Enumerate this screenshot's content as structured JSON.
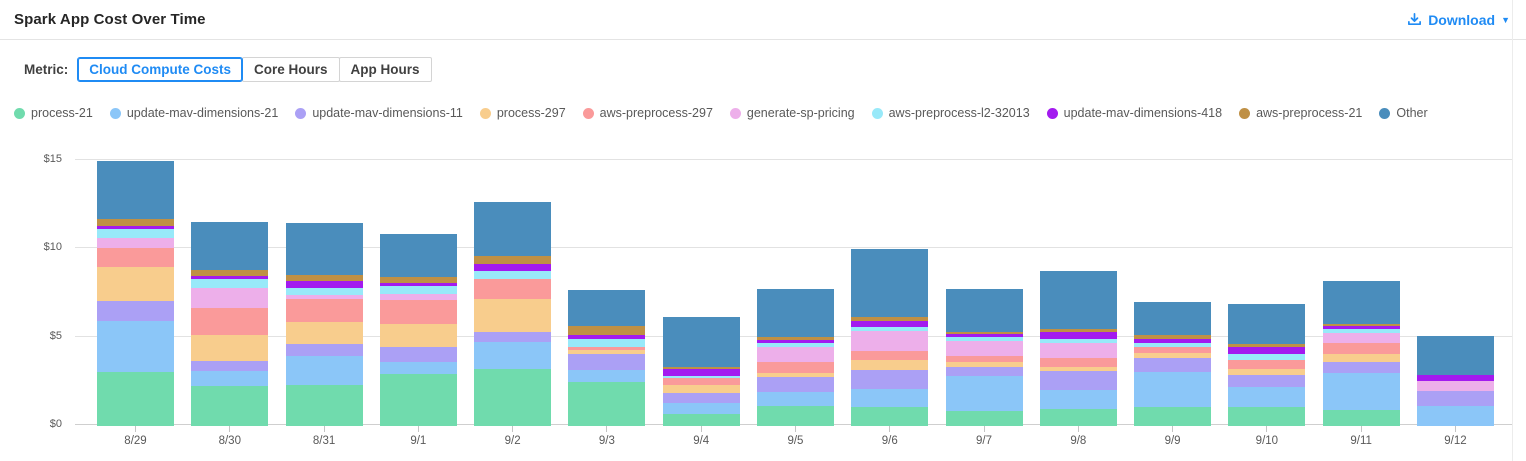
{
  "header": {
    "title": "Spark App Cost Over Time",
    "download_label": "Download"
  },
  "controls": {
    "metric_label": "Metric:",
    "tabs": [
      {
        "label": "Cloud Compute Costs",
        "selected": true
      },
      {
        "label": "Core Hours",
        "selected": false
      },
      {
        "label": "App Hours",
        "selected": false
      }
    ]
  },
  "colors": {
    "accent": "#1f8bf4",
    "gridline": "#e2e2e2",
    "axis_text": "#595959"
  },
  "chart_data": {
    "type": "bar",
    "stacked": true,
    "title": "Spark App Cost Over Time",
    "xlabel": "",
    "ylabel": "",
    "ylim": [
      0,
      15
    ],
    "yticks": [
      0,
      5,
      10,
      15
    ],
    "ytick_labels": [
      "$0",
      "$5",
      "$10",
      "$15"
    ],
    "grid": true,
    "legend_position": "top",
    "categories": [
      "8/29",
      "8/30",
      "8/31",
      "9/1",
      "9/2",
      "9/3",
      "9/4",
      "9/5",
      "9/6",
      "9/7",
      "9/8",
      "9/9",
      "9/10",
      "9/11",
      "9/12"
    ],
    "series": [
      {
        "name": "process-21",
        "color": "#70dbad",
        "values": [
          3.05,
          2.25,
          2.3,
          2.95,
          3.2,
          2.5,
          0.7,
          1.15,
          1.1,
          0.85,
          0.95,
          1.05,
          1.05,
          0.9,
          0
        ]
      },
      {
        "name": "update-mav-dimensions-21",
        "color": "#8bc6f8",
        "values": [
          2.9,
          0.85,
          1.65,
          0.7,
          1.55,
          0.65,
          0.6,
          0.8,
          1.0,
          2.0,
          1.1,
          2.0,
          1.15,
          2.1,
          1.15
        ]
      },
      {
        "name": "update-mav-dimensions-11",
        "color": "#aba0f5",
        "values": [
          1.15,
          0.6,
          0.7,
          0.85,
          0.6,
          0.95,
          0.55,
          0.8,
          1.1,
          0.5,
          1.05,
          0.8,
          0.7,
          0.65,
          0.85
        ]
      },
      {
        "name": "process-297",
        "color": "#f8cd8d",
        "values": [
          1.9,
          1.45,
          1.25,
          1.3,
          1.85,
          0.2,
          0.5,
          0.25,
          0.55,
          0.25,
          0.25,
          0.3,
          0.3,
          0.4,
          0
        ]
      },
      {
        "name": "aws-preprocess-297",
        "color": "#fa9a9a",
        "values": [
          1.05,
          1.55,
          1.3,
          1.35,
          1.1,
          0.2,
          0.35,
          0.6,
          0.5,
          0.35,
          0.5,
          0.3,
          0.55,
          0.65,
          0
        ]
      },
      {
        "name": "generate-sp-pricing",
        "color": "#edafea",
        "values": [
          0.6,
          1.1,
          0.2,
          0.3,
          0,
          0,
          0,
          0.9,
          1.15,
          0.85,
          0.85,
          0,
          0,
          0.55,
          0.55
        ]
      },
      {
        "name": "aws-preprocess-l2-32013",
        "color": "#98e9f9",
        "values": [
          0.5,
          0.5,
          0.4,
          0.45,
          0.5,
          0.4,
          0.15,
          0.2,
          0.2,
          0.25,
          0.2,
          0.25,
          0.3,
          0.25,
          0
        ]
      },
      {
        "name": "update-mav-dimensions-418",
        "color": "#a31aef",
        "values": [
          0.15,
          0.2,
          0.4,
          0.2,
          0.4,
          0.25,
          0.4,
          0.15,
          0.35,
          0.15,
          0.4,
          0.25,
          0.4,
          0.15,
          0.35
        ]
      },
      {
        "name": "aws-preprocess-21",
        "color": "#bf9045",
        "values": [
          0.4,
          0.35,
          0.35,
          0.35,
          0.45,
          0.5,
          0.1,
          0.2,
          0.25,
          0.15,
          0.2,
          0.2,
          0.2,
          0.15,
          0
        ]
      },
      {
        "name": "Other",
        "color": "#4a8dbc",
        "values": [
          3.3,
          2.7,
          2.95,
          2.45,
          3.05,
          2.05,
          2.8,
          2.7,
          3.8,
          2.4,
          3.25,
          1.85,
          2.25,
          2.4,
          2.2
        ]
      }
    ]
  }
}
